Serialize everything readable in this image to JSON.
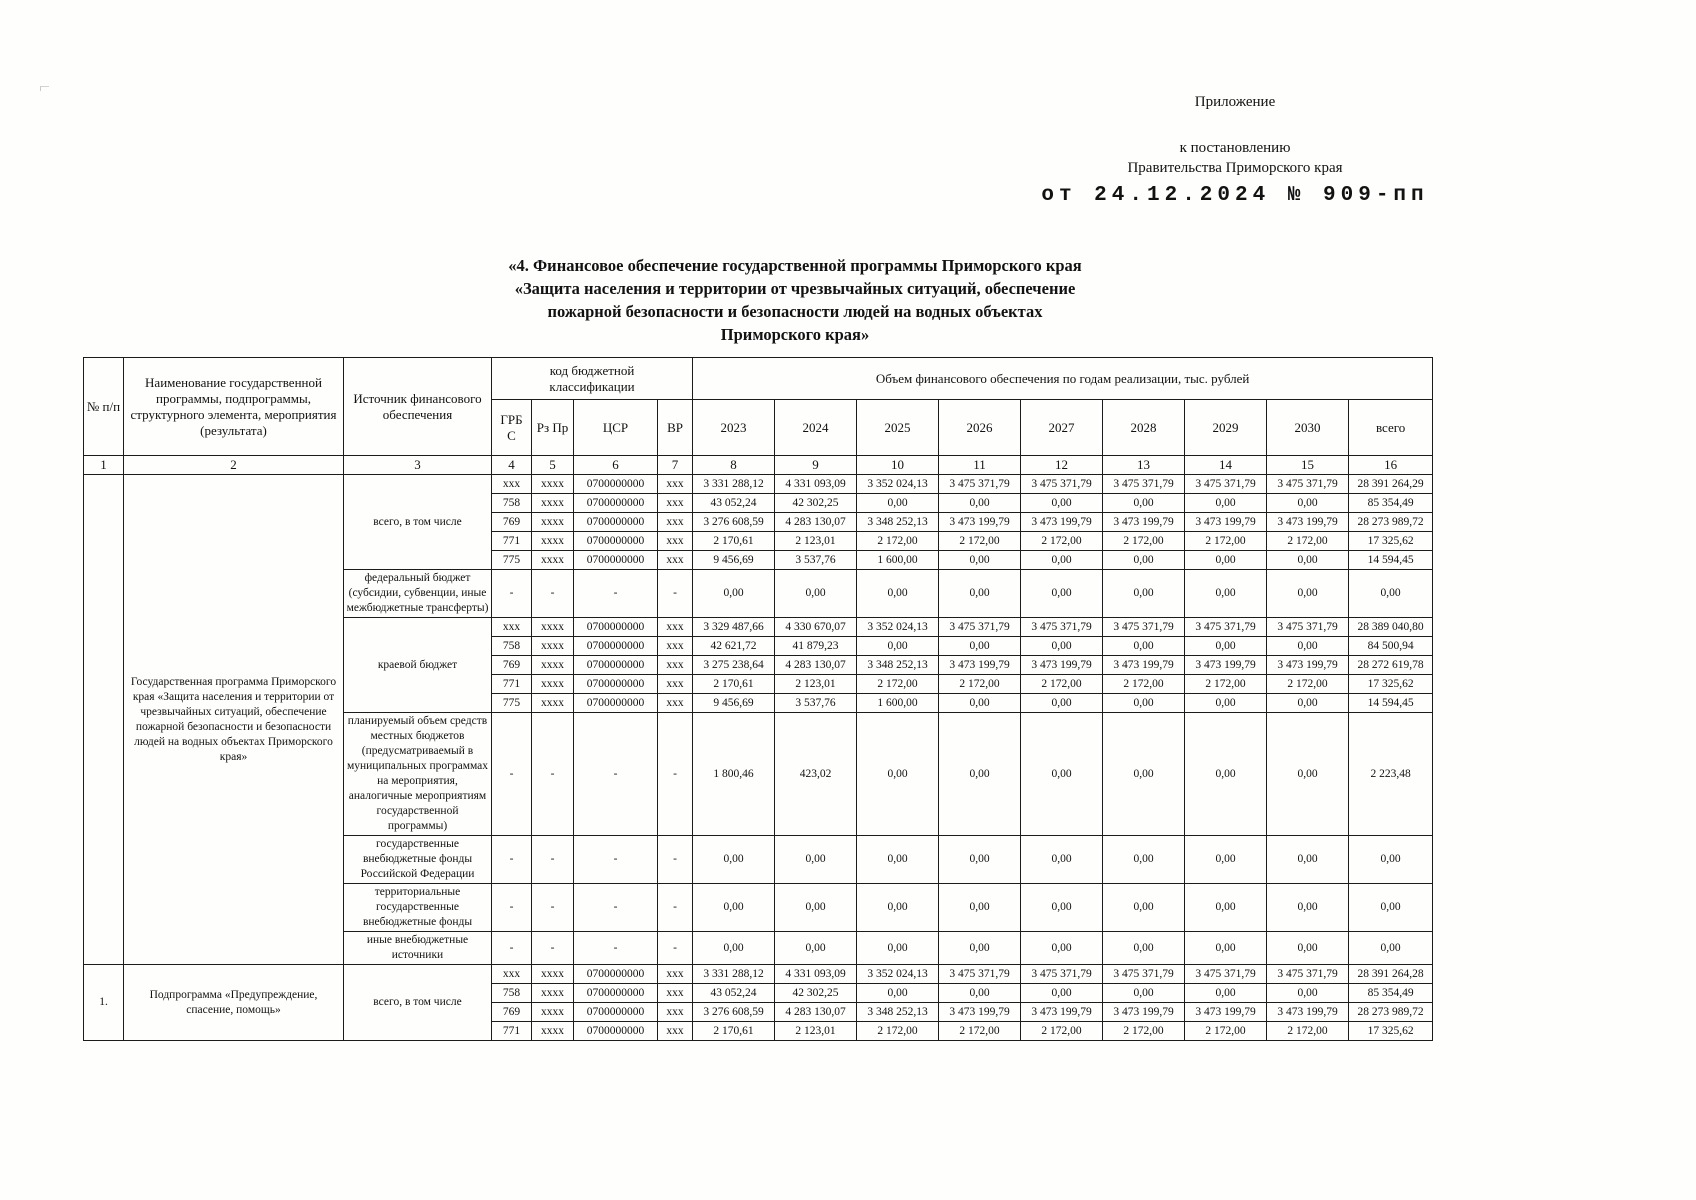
{
  "header": {
    "appendix": "Приложение",
    "to_resolution": "к постановлению",
    "government": "Правительства Приморского края",
    "decree": "от 24.12.2024 № 909-пп"
  },
  "title": [
    "«4. Финансовое обеспечение государственной программы Приморского края",
    "«Защита населения и территории от чрезвычайных ситуаций, обеспечение",
    "пожарной безопасности и безопасности людей на водных объектах",
    "Приморского края»"
  ],
  "table": {
    "header": {
      "num": "№ п/п",
      "name": "Наименование государственной программы, подпрограммы, структурного элемента, мероприятия (результата)",
      "source": "Источник финансового обеспечения",
      "budget_code": "код бюджетной\nклассификации",
      "volume": "Объем финансового обеспечения по годам реализации, тыс. рублей",
      "grbs": "ГРБ\nС",
      "rzpr": "Рз Пр",
      "csr": "ЦСР",
      "vr": "ВР",
      "years": [
        "2023",
        "2024",
        "2025",
        "2026",
        "2027",
        "2028",
        "2029",
        "2030"
      ],
      "total": "всего",
      "index": [
        "1",
        "2",
        "3",
        "4",
        "5",
        "6",
        "7",
        "8",
        "9",
        "10",
        "11",
        "12",
        "13",
        "14",
        "15",
        "16"
      ]
    },
    "groups": [
      {
        "num": "",
        "name": "Государственная программа Приморского края «Защита населения и территории от чрезвычайных ситуаций, обеспечение пожарной безопасности и безопасности людей на водных объектах Приморского края»",
        "sources": [
          {
            "label": "всего, в том числе",
            "bold": true,
            "rows": [
              {
                "codes": [
                  "xxx",
                  "xxxx",
                  "0700000000",
                  "xxx"
                ],
                "values": [
                  "3 331 288,12",
                  "4 331 093,09",
                  "3 352 024,13",
                  "3 475 371,79",
                  "3 475 371,79",
                  "3 475 371,79",
                  "3 475 371,79",
                  "3 475 371,79",
                  "28 391 264,29"
                ]
              },
              {
                "codes": [
                  "758",
                  "xxxx",
                  "0700000000",
                  "xxx"
                ],
                "values": [
                  "43 052,24",
                  "42 302,25",
                  "0,00",
                  "0,00",
                  "0,00",
                  "0,00",
                  "0,00",
                  "0,00",
                  "85 354,49"
                ]
              },
              {
                "codes": [
                  "769",
                  "xxxx",
                  "0700000000",
                  "xxx"
                ],
                "values": [
                  "3 276 608,59",
                  "4 283 130,07",
                  "3 348 252,13",
                  "3 473 199,79",
                  "3 473 199,79",
                  "3 473 199,79",
                  "3 473 199,79",
                  "3 473 199,79",
                  "28 273 989,72"
                ]
              },
              {
                "codes": [
                  "771",
                  "xxxx",
                  "0700000000",
                  "xxx"
                ],
                "values": [
                  "2 170,61",
                  "2 123,01",
                  "2 172,00",
                  "2 172,00",
                  "2 172,00",
                  "2 172,00",
                  "2 172,00",
                  "2 172,00",
                  "17 325,62"
                ]
              },
              {
                "codes": [
                  "775",
                  "xxxx",
                  "0700000000",
                  "xxx"
                ],
                "values": [
                  "9 456,69",
                  "3 537,76",
                  "1 600,00",
                  "0,00",
                  "0,00",
                  "0,00",
                  "0,00",
                  "0,00",
                  "14 594,45"
                ]
              }
            ]
          },
          {
            "label": "федеральный бюджет (субсидии, субвенции, иные межбюджетные трансферты)",
            "bold": false,
            "rows": [
              {
                "codes": [
                  "-",
                  "-",
                  "-",
                  "-"
                ],
                "values": [
                  "0,00",
                  "0,00",
                  "0,00",
                  "0,00",
                  "0,00",
                  "0,00",
                  "0,00",
                  "0,00",
                  "0,00"
                ]
              }
            ]
          },
          {
            "label": "краевой бюджет",
            "bold": false,
            "rows": [
              {
                "codes": [
                  "xxx",
                  "xxxx",
                  "0700000000",
                  "xxx"
                ],
                "values": [
                  "3 329 487,66",
                  "4 330 670,07",
                  "3 352 024,13",
                  "3 475 371,79",
                  "3 475 371,79",
                  "3 475 371,79",
                  "3 475 371,79",
                  "3 475 371,79",
                  "28 389 040,80"
                ]
              },
              {
                "codes": [
                  "758",
                  "xxxx",
                  "0700000000",
                  "xxx"
                ],
                "values": [
                  "42 621,72",
                  "41 879,23",
                  "0,00",
                  "0,00",
                  "0,00",
                  "0,00",
                  "0,00",
                  "0,00",
                  "84 500,94"
                ]
              },
              {
                "codes": [
                  "769",
                  "xxxx",
                  "0700000000",
                  "xxx"
                ],
                "values": [
                  "3 275 238,64",
                  "4 283 130,07",
                  "3 348 252,13",
                  "3 473 199,79",
                  "3 473 199,79",
                  "3 473 199,79",
                  "3 473 199,79",
                  "3 473 199,79",
                  "28 272 619,78"
                ]
              },
              {
                "codes": [
                  "771",
                  "xxxx",
                  "0700000000",
                  "xxx"
                ],
                "values": [
                  "2 170,61",
                  "2 123,01",
                  "2 172,00",
                  "2 172,00",
                  "2 172,00",
                  "2 172,00",
                  "2 172,00",
                  "2 172,00",
                  "17 325,62"
                ]
              },
              {
                "codes": [
                  "775",
                  "xxxx",
                  "0700000000",
                  "xxx"
                ],
                "values": [
                  "9 456,69",
                  "3 537,76",
                  "1 600,00",
                  "0,00",
                  "0,00",
                  "0,00",
                  "0,00",
                  "0,00",
                  "14 594,45"
                ]
              }
            ]
          },
          {
            "label": "планируемый объем средств местных бюджетов (предусматриваемый в муниципальных программах на мероприятия, аналогичные мероприятиям государственной программы)",
            "bold": false,
            "rows": [
              {
                "codes": [
                  "-",
                  "-",
                  "-",
                  "-"
                ],
                "values": [
                  "1 800,46",
                  "423,02",
                  "0,00",
                  "0,00",
                  "0,00",
                  "0,00",
                  "0,00",
                  "0,00",
                  "2 223,48"
                ]
              }
            ]
          },
          {
            "label": "государственные внебюджетные фонды Российской Федерации",
            "bold": false,
            "rows": [
              {
                "codes": [
                  "-",
                  "-",
                  "-",
                  "-"
                ],
                "values": [
                  "0,00",
                  "0,00",
                  "0,00",
                  "0,00",
                  "0,00",
                  "0,00",
                  "0,00",
                  "0,00",
                  "0,00"
                ]
              }
            ]
          },
          {
            "label": "территориальные государственные внебюджетные фонды",
            "bold": false,
            "rows": [
              {
                "codes": [
                  "-",
                  "-",
                  "-",
                  "-"
                ],
                "values": [
                  "0,00",
                  "0,00",
                  "0,00",
                  "0,00",
                  "0,00",
                  "0,00",
                  "0,00",
                  "0,00",
                  "0,00"
                ]
              }
            ]
          },
          {
            "label": "иные внебюджетные источники",
            "bold": false,
            "rows": [
              {
                "codes": [
                  "-",
                  "-",
                  "-",
                  "-"
                ],
                "values": [
                  "0,00",
                  "0,00",
                  "0,00",
                  "0,00",
                  "0,00",
                  "0,00",
                  "0,00",
                  "0,00",
                  "0,00"
                ]
              }
            ]
          }
        ]
      },
      {
        "num": "1.",
        "name": "Подпрограмма «Предупреждение, спасение, помощь»",
        "sources": [
          {
            "label": "всего, в том числе",
            "bold": true,
            "rows": [
              {
                "codes": [
                  "xxx",
                  "xxxx",
                  "0700000000",
                  "xxx"
                ],
                "values": [
                  "3 331 288,12",
                  "4 331 093,09",
                  "3 352 024,13",
                  "3 475 371,79",
                  "3 475 371,79",
                  "3 475 371,79",
                  "3 475 371,79",
                  "3 475 371,79",
                  "28 391 264,28"
                ]
              },
              {
                "codes": [
                  "758",
                  "xxxx",
                  "0700000000",
                  "xxx"
                ],
                "values": [
                  "43 052,24",
                  "42 302,25",
                  "0,00",
                  "0,00",
                  "0,00",
                  "0,00",
                  "0,00",
                  "0,00",
                  "85 354,49"
                ]
              },
              {
                "codes": [
                  "769",
                  "xxxx",
                  "0700000000",
                  "xxx"
                ],
                "values": [
                  "3 276 608,59",
                  "4 283 130,07",
                  "3 348 252,13",
                  "3 473 199,79",
                  "3 473 199,79",
                  "3 473 199,79",
                  "3 473 199,79",
                  "3 473 199,79",
                  "28 273 989,72"
                ]
              },
              {
                "codes": [
                  "771",
                  "xxxx",
                  "0700000000",
                  "xxx"
                ],
                "values": [
                  "2 170,61",
                  "2 123,01",
                  "2 172,00",
                  "2 172,00",
                  "2 172,00",
                  "2 172,00",
                  "2 172,00",
                  "2 172,00",
                  "17 325,62"
                ]
              }
            ]
          }
        ]
      }
    ]
  }
}
